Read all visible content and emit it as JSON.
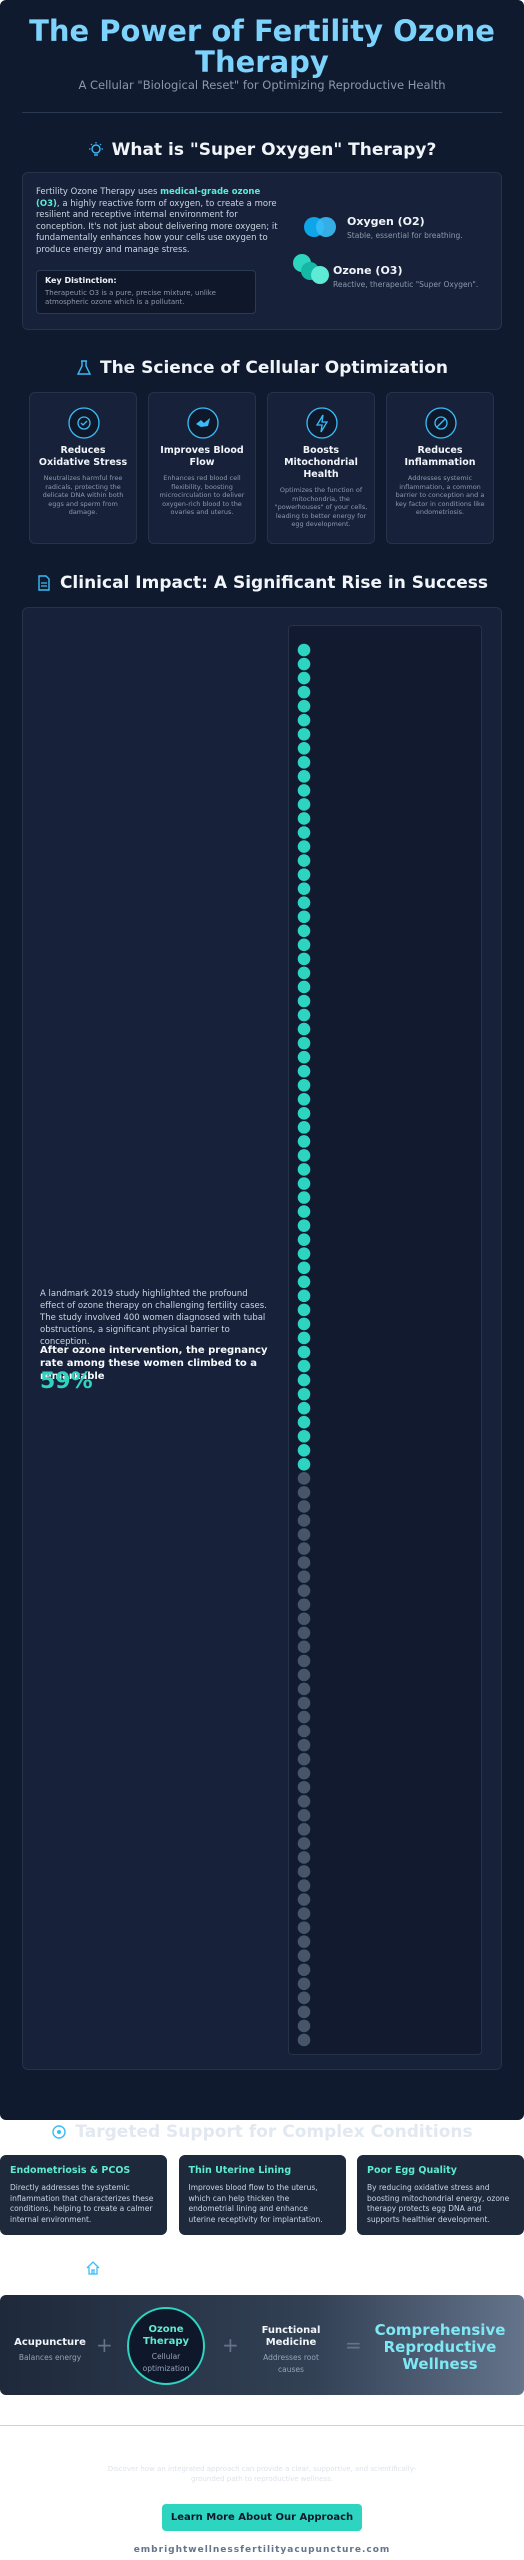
{
  "header": {
    "title": "The Power of Fertility Ozone Therapy",
    "subtitle": "A Cellular \"Biological Reset\" for Optimizing Reproductive Health"
  },
  "what_is": {
    "heading": "What is \"Super Oxygen\" Therapy?",
    "paragraph": {
      "before": "Fertility Ozone Therapy uses ",
      "highlight": "medical-grade ozone (O3)",
      "after": ", a highly reactive form of oxygen, to create a more resilient and receptive internal environment for conception. It's not just about delivering more oxygen; it fundamentally enhances how your cells use oxygen to produce energy and manage stress."
    },
    "key_distinction": {
      "title": "Key Distinction:",
      "text": "Therapeutic O3 is a pure, precise mixture, unlike atmospheric ozone which is a pollutant."
    },
    "molecules": [
      {
        "name": "Oxygen (O2)",
        "description": "Stable, essential for breathing."
      },
      {
        "name": "Ozone (O3)",
        "description": "Reactive, therapeutic \"Super Oxygen\"."
      }
    ]
  },
  "science": {
    "heading": "The Science of Cellular Optimization",
    "cards": [
      {
        "title": "Reduces Oxidative Stress",
        "text": "Neutralizes harmful free radicals, protecting the delicate DNA within both eggs and sperm from damage."
      },
      {
        "title": "Improves Blood Flow",
        "text": "Enhances red blood cell flexibility, boosting microcirculation to deliver oxygen-rich blood to the ovaries and uterus."
      },
      {
        "title": "Boosts Mitochondrial Health",
        "text": "Optimizes the function of mitochondria, the \"powerhouses\" of your cells, leading to better energy for egg development."
      },
      {
        "title": "Reduces Inflammation",
        "text": "Addresses systemic inflammation, a common barrier to conception and a key factor in conditions like endometriosis."
      }
    ]
  },
  "clinical": {
    "heading": "Clinical Impact: A Significant Rise in Success",
    "study_text": "A landmark 2019 study highlighted the profound effect of ozone therapy on challenging fertility cases. The study involved 400 women diagnosed with tubal obstructions, a significant physical barrier to conception.",
    "result_text": "After ozone intervention, the pregnancy rate among these women climbed to a remarkable"
  },
  "chart_data": {
    "type": "waffle",
    "values": [
      59
    ],
    "value_labels": [
      "59%"
    ],
    "total": 100,
    "color": "#2dd4bf",
    "rest_color": "#475569"
  },
  "conditions": {
    "heading": "Targeted Support for Complex Conditions",
    "cards": [
      {
        "title": "Endometriosis & PCOS",
        "text": "Directly addresses the systemic inflammation that characterizes these conditions, helping to create a calmer internal environment."
      },
      {
        "title": "Thin Uterine Lining",
        "text": "Improves blood flow to the uterus, which can help thicken the endometrial lining and enhance uterine receptivity for implantation."
      },
      {
        "title": "Poor Egg Quality",
        "text": "By reducing oxidative stress and boosting mitochondrial energy, ozone therapy protects egg DNA and supports healthier development."
      }
    ]
  },
  "integration": {
    "items": [
      {
        "title": "Acupuncture",
        "subtitle": "Balances energy"
      },
      {
        "title": "Ozone Therapy",
        "subtitle": "Cellular optimization"
      },
      {
        "title": "Functional Medicine",
        "subtitle": "Addresses root causes"
      }
    ],
    "operators": [
      "+",
      "+",
      "="
    ],
    "result": "Comprehensive Reproductive Wellness"
  },
  "footer": {
    "text": "Discover how an integrated approach can provide a clear, supportive, and scientifically-grounded path to reproductive wellness.",
    "button": "Learn More About Our Approach",
    "website": "embrightwellnessfertilityacupuncture.com"
  }
}
